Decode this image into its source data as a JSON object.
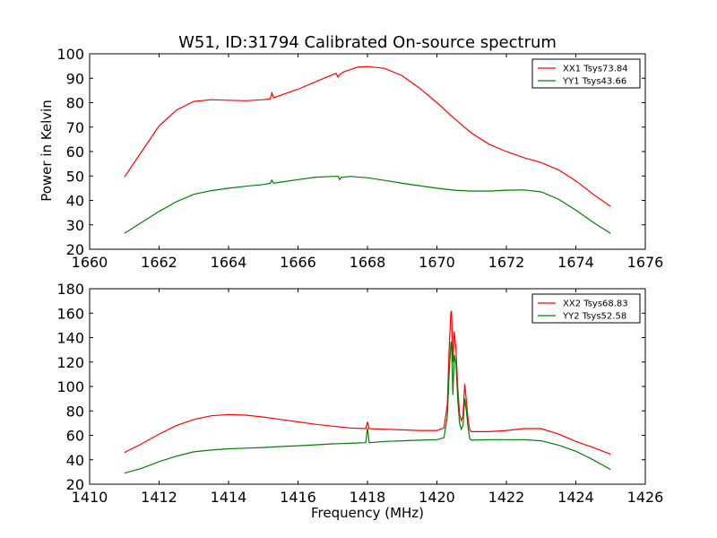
{
  "figure": {
    "title": "W51, ID:31794 Calibrated On-source spectrum",
    "ylabel": "Power in Kelvin",
    "xlabel": "Frequency (MHz)"
  },
  "chart_data": [
    {
      "type": "line",
      "title": "W51, ID:31794 Calibrated On-source spectrum",
      "xlabel": "",
      "ylabel": "Power in Kelvin",
      "xlim": [
        1660,
        1676
      ],
      "ylim": [
        20,
        100
      ],
      "xticks": [
        "1660",
        "1662",
        "1664",
        "1666",
        "1668",
        "1670",
        "1672",
        "1674",
        "1676"
      ],
      "yticks": [
        "20",
        "30",
        "40",
        "50",
        "60",
        "70",
        "80",
        "90",
        "100"
      ],
      "grid": false,
      "legend_position": "top-right",
      "series": [
        {
          "name": "XX1 Tsys73.84",
          "color": "#ff0000",
          "x": [
            1661.0,
            1661.5,
            1662.0,
            1662.5,
            1663.0,
            1663.5,
            1664.0,
            1664.5,
            1665.0,
            1665.2,
            1665.25,
            1665.3,
            1665.5,
            1666.0,
            1666.5,
            1667.0,
            1667.1,
            1667.15,
            1667.2,
            1667.3,
            1667.5,
            1667.7,
            1668.0,
            1668.5,
            1669.0,
            1669.5,
            1670.0,
            1670.5,
            1671.0,
            1671.5,
            1672.0,
            1672.5,
            1673.0,
            1673.5,
            1674.0,
            1674.5,
            1675.0
          ],
          "y": [
            49.5,
            60,
            70.5,
            77,
            80.5,
            81.2,
            81,
            80.8,
            81.2,
            81.5,
            84,
            82,
            83,
            85.5,
            88.5,
            91.5,
            92,
            90.5,
            91.5,
            92.5,
            93.5,
            94.5,
            94.8,
            94,
            91,
            86,
            80,
            73.5,
            67.5,
            63,
            60,
            57.5,
            55.5,
            52.5,
            48,
            42.5,
            37.5
          ]
        },
        {
          "name": "YY1 Tsys43.66",
          "color": "#008000",
          "x": [
            1661.0,
            1661.5,
            1662.0,
            1662.5,
            1663.0,
            1663.5,
            1664.0,
            1664.5,
            1665.0,
            1665.2,
            1665.25,
            1665.3,
            1665.5,
            1666.0,
            1666.5,
            1667.0,
            1667.15,
            1667.2,
            1667.25,
            1667.5,
            1668.0,
            1668.5,
            1669.0,
            1669.5,
            1670.0,
            1670.5,
            1671.0,
            1671.5,
            1672.0,
            1672.5,
            1673.0,
            1673.5,
            1674.0,
            1674.5,
            1675.0
          ],
          "y": [
            26.5,
            31,
            35.5,
            39.5,
            42.5,
            44,
            45,
            45.8,
            46.5,
            47,
            48.3,
            47,
            47.5,
            48.5,
            49.5,
            49.8,
            49.9,
            48.5,
            49.5,
            49.8,
            49.3,
            48.2,
            47,
            46,
            45,
            44.2,
            43.8,
            43.8,
            44.2,
            44.3,
            43.5,
            40.5,
            36,
            31,
            26.5
          ]
        }
      ]
    },
    {
      "type": "line",
      "title": "",
      "xlabel": "Frequency (MHz)",
      "ylabel": "",
      "xlim": [
        1410,
        1426
      ],
      "ylim": [
        20,
        180
      ],
      "xticks": [
        "1410",
        "1412",
        "1414",
        "1416",
        "1418",
        "1420",
        "1422",
        "1424",
        "1426"
      ],
      "yticks": [
        "20",
        "40",
        "60",
        "80",
        "100",
        "120",
        "140",
        "160",
        "180"
      ],
      "grid": false,
      "legend_position": "top-right",
      "series": [
        {
          "name": "XX2 Tsys68.83",
          "color": "#ff0000",
          "x": [
            1411.0,
            1411.5,
            1412.0,
            1412.5,
            1413.0,
            1413.5,
            1414.0,
            1414.5,
            1415.0,
            1415.5,
            1416.0,
            1416.5,
            1417.0,
            1417.5,
            1417.95,
            1418.0,
            1418.05,
            1418.5,
            1419.0,
            1419.5,
            1420.0,
            1420.2,
            1420.3,
            1420.35,
            1420.4,
            1420.42,
            1420.46,
            1420.5,
            1420.55,
            1420.6,
            1420.65,
            1420.7,
            1420.75,
            1420.8,
            1420.85,
            1420.9,
            1420.95,
            1421.0,
            1421.5,
            1422.0,
            1422.5,
            1423.0,
            1423.5,
            1424.0,
            1424.5,
            1425.0
          ],
          "y": [
            46,
            53,
            61,
            68,
            73,
            76,
            77,
            76.5,
            75,
            73,
            71,
            69,
            67.5,
            66,
            65.5,
            71,
            65.5,
            65,
            64.5,
            64,
            64,
            66,
            85,
            130,
            160,
            162,
            120,
            145,
            130,
            100,
            78,
            72,
            76,
            102,
            88,
            72,
            64,
            63,
            63,
            64,
            65.5,
            65.5,
            61,
            55,
            50,
            44.5
          ]
        },
        {
          "name": "YY2 Tsys52.58",
          "color": "#008000",
          "x": [
            1411.0,
            1411.5,
            1412.0,
            1412.5,
            1413.0,
            1413.5,
            1414.0,
            1414.5,
            1415.0,
            1415.5,
            1416.0,
            1416.5,
            1417.0,
            1417.5,
            1417.95,
            1418.0,
            1418.05,
            1418.5,
            1419.0,
            1419.5,
            1420.0,
            1420.2,
            1420.3,
            1420.35,
            1420.4,
            1420.42,
            1420.46,
            1420.5,
            1420.55,
            1420.6,
            1420.65,
            1420.7,
            1420.75,
            1420.8,
            1420.85,
            1420.9,
            1420.95,
            1421.0,
            1421.5,
            1422.0,
            1422.5,
            1423.0,
            1423.5,
            1424.0,
            1424.5,
            1425.0
          ],
          "y": [
            29,
            33,
            38.5,
            43,
            46.5,
            48,
            49,
            49.5,
            50,
            50.8,
            51.5,
            52.2,
            53,
            53.5,
            54,
            66,
            54,
            55,
            55.5,
            56,
            56.5,
            58,
            75,
            110,
            135,
            137,
            93,
            126,
            118,
            90,
            70,
            65,
            68,
            90,
            80,
            65,
            57,
            56,
            56.5,
            56.5,
            56.5,
            55.5,
            52,
            47,
            40,
            32
          ]
        }
      ]
    }
  ]
}
